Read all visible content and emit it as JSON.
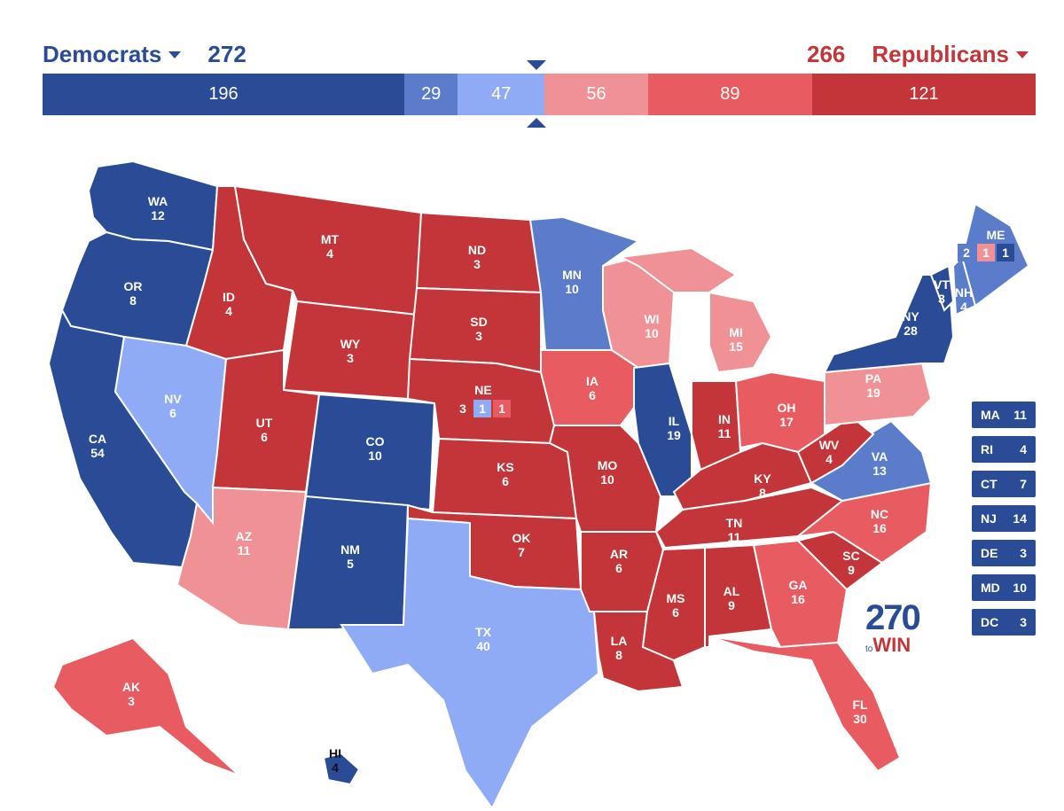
{
  "header": {
    "dem_label": "Democrats",
    "dem_total": "272",
    "rep_label": "Republicans",
    "rep_total": "266"
  },
  "bar_segments": [
    {
      "value": 196,
      "label": "196",
      "color": "#2a4b96"
    },
    {
      "value": 29,
      "label": "29",
      "color": "#5a7ccb"
    },
    {
      "value": 47,
      "label": "47",
      "color": "#8fabf6"
    },
    {
      "value": 56,
      "label": "56",
      "color": "#ef9195"
    },
    {
      "value": 89,
      "label": "89",
      "color": "#e85b61"
    },
    {
      "value": 121,
      "label": "121",
      "color": "#c33538"
    }
  ],
  "colors": {
    "safe_dem": "#2a4b96",
    "likely_dem": "#5a7ccb",
    "lean_dem": "#8fabf6",
    "lean_rep": "#ef9195",
    "likely_rep": "#e85b61",
    "safe_rep": "#c33538"
  },
  "states": [
    {
      "abbr": "WA",
      "ev": "12",
      "rating": "safe_dem"
    },
    {
      "abbr": "OR",
      "ev": "8",
      "rating": "safe_dem"
    },
    {
      "abbr": "CA",
      "ev": "54",
      "rating": "safe_dem"
    },
    {
      "abbr": "NV",
      "ev": "6",
      "rating": "lean_dem"
    },
    {
      "abbr": "ID",
      "ev": "4",
      "rating": "safe_rep"
    },
    {
      "abbr": "MT",
      "ev": "4",
      "rating": "safe_rep"
    },
    {
      "abbr": "WY",
      "ev": "3",
      "rating": "safe_rep"
    },
    {
      "abbr": "UT",
      "ev": "6",
      "rating": "safe_rep"
    },
    {
      "abbr": "AZ",
      "ev": "11",
      "rating": "lean_rep"
    },
    {
      "abbr": "CO",
      "ev": "10",
      "rating": "safe_dem"
    },
    {
      "abbr": "NM",
      "ev": "5",
      "rating": "safe_dem"
    },
    {
      "abbr": "ND",
      "ev": "3",
      "rating": "safe_rep"
    },
    {
      "abbr": "SD",
      "ev": "3",
      "rating": "safe_rep"
    },
    {
      "abbr": "NE",
      "ev": "",
      "rating": "safe_rep"
    },
    {
      "abbr": "KS",
      "ev": "6",
      "rating": "safe_rep"
    },
    {
      "abbr": "OK",
      "ev": "7",
      "rating": "safe_rep"
    },
    {
      "abbr": "TX",
      "ev": "40",
      "rating": "lean_dem"
    },
    {
      "abbr": "MN",
      "ev": "10",
      "rating": "likely_dem"
    },
    {
      "abbr": "IA",
      "ev": "6",
      "rating": "likely_rep"
    },
    {
      "abbr": "MO",
      "ev": "10",
      "rating": "safe_rep"
    },
    {
      "abbr": "AR",
      "ev": "6",
      "rating": "safe_rep"
    },
    {
      "abbr": "LA",
      "ev": "8",
      "rating": "safe_rep"
    },
    {
      "abbr": "WI",
      "ev": "10",
      "rating": "lean_rep"
    },
    {
      "abbr": "IL",
      "ev": "19",
      "rating": "safe_dem"
    },
    {
      "abbr": "MI",
      "ev": "15",
      "rating": "lean_rep"
    },
    {
      "abbr": "IN",
      "ev": "11",
      "rating": "safe_rep"
    },
    {
      "abbr": "OH",
      "ev": "17",
      "rating": "likely_rep"
    },
    {
      "abbr": "KY",
      "ev": "8",
      "rating": "safe_rep"
    },
    {
      "abbr": "TN",
      "ev": "11",
      "rating": "safe_rep"
    },
    {
      "abbr": "MS",
      "ev": "6",
      "rating": "safe_rep"
    },
    {
      "abbr": "AL",
      "ev": "9",
      "rating": "safe_rep"
    },
    {
      "abbr": "GA",
      "ev": "16",
      "rating": "likely_rep"
    },
    {
      "abbr": "FL",
      "ev": "30",
      "rating": "likely_rep"
    },
    {
      "abbr": "SC",
      "ev": "9",
      "rating": "safe_rep"
    },
    {
      "abbr": "NC",
      "ev": "16",
      "rating": "likely_rep"
    },
    {
      "abbr": "VA",
      "ev": "13",
      "rating": "likely_dem"
    },
    {
      "abbr": "WV",
      "ev": "4",
      "rating": "safe_rep"
    },
    {
      "abbr": "PA",
      "ev": "19",
      "rating": "lean_rep"
    },
    {
      "abbr": "NY",
      "ev": "28",
      "rating": "safe_dem"
    },
    {
      "abbr": "VT",
      "ev": "3",
      "rating": "safe_dem"
    },
    {
      "abbr": "NH",
      "ev": "4",
      "rating": "likely_dem"
    },
    {
      "abbr": "ME",
      "ev": "",
      "rating": "likely_dem"
    },
    {
      "abbr": "AK",
      "ev": "3",
      "rating": "likely_rep"
    },
    {
      "abbr": "HI",
      "ev": "4",
      "rating": "safe_dem"
    }
  ],
  "splits": {
    "ne": {
      "abbr": "NE",
      "values": [
        "3",
        "1",
        "1"
      ]
    },
    "me": {
      "abbr": "ME",
      "values": [
        "2",
        "1",
        "1"
      ]
    }
  },
  "small_states": [
    {
      "abbr": "MA",
      "ev": "11"
    },
    {
      "abbr": "RI",
      "ev": "4"
    },
    {
      "abbr": "CT",
      "ev": "7"
    },
    {
      "abbr": "NJ",
      "ev": "14"
    },
    {
      "abbr": "DE",
      "ev": "3"
    },
    {
      "abbr": "MD",
      "ev": "10"
    },
    {
      "abbr": "DC",
      "ev": "3"
    }
  ],
  "logo": {
    "number": "270",
    "to": "to",
    "win": "WIN"
  }
}
